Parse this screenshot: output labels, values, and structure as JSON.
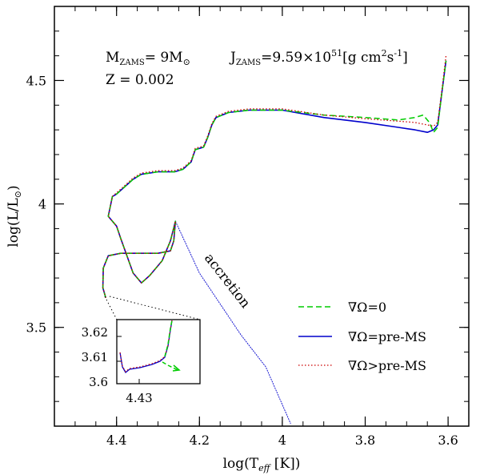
{
  "chart_data": {
    "type": "line",
    "xlabel": "log(T",
    "xlabel_sub": "eff",
    "xlabel_tail": " [K])",
    "ylabel": "log(L/L",
    "ylabel_sub": "⊙",
    "ylabel_tail": ")",
    "xlim": [
      4.55,
      3.55
    ],
    "ylim": [
      3.1,
      4.8
    ],
    "x_reversed": true,
    "xticks": [
      4.4,
      4.2,
      4.0,
      3.8,
      3.6
    ],
    "xtick_labels": [
      "4.4",
      "4.2",
      "4",
      "3.8",
      "3.6"
    ],
    "yticks": [
      3.5,
      4.0,
      4.5
    ],
    "ytick_labels": [
      "3.5",
      "4",
      "4.5"
    ],
    "grid": false,
    "legend_position": "bottom-right",
    "annotations": {
      "mass_line_main": "M",
      "mass_line_sub": "ZAMS",
      "mass_line_tail": "=  9M",
      "mass_line_sun": "⊙",
      "j_line_main": "J",
      "j_line_sub": "ZAMS",
      "j_line_tail": "=9.59×10",
      "j_line_exp": "51",
      "j_line_unit": "[g cm",
      "j_line_unit_exp1": "2",
      "j_line_unit_mid": "s",
      "j_line_unit_exp2": "-1",
      "j_line_unit_end": "]",
      "z_line": "Z  =  0.002",
      "accretion": "accretion"
    },
    "series": [
      {
        "name": "∇Ω=0",
        "color": "#00cc00",
        "style": "dashed",
        "points": [
          [
            4.42,
            3.95
          ],
          [
            4.41,
            4.03
          ],
          [
            4.4,
            4.04
          ],
          [
            4.38,
            4.07
          ],
          [
            4.36,
            4.1
          ],
          [
            4.34,
            4.12
          ],
          [
            4.3,
            4.13
          ],
          [
            4.26,
            4.13
          ],
          [
            4.24,
            4.14
          ],
          [
            4.22,
            4.17
          ],
          [
            4.21,
            4.22
          ],
          [
            4.19,
            4.23
          ],
          [
            4.18,
            4.27
          ],
          [
            4.17,
            4.32
          ],
          [
            4.16,
            4.35
          ],
          [
            4.13,
            4.37
          ],
          [
            4.08,
            4.38
          ],
          [
            4.0,
            4.38
          ],
          [
            3.9,
            4.36
          ],
          [
            3.8,
            4.35
          ],
          [
            3.72,
            4.34
          ],
          [
            3.68,
            4.35
          ],
          [
            3.66,
            4.36
          ],
          [
            3.645,
            4.33
          ],
          [
            3.635,
            4.29
          ],
          [
            3.625,
            4.31
          ],
          [
            3.615,
            4.45
          ],
          [
            3.605,
            4.58
          ]
        ]
      },
      {
        "name": "∇Ω=pre-MS",
        "color": "#0000cc",
        "style": "solid",
        "points": [
          [
            4.42,
            3.95
          ],
          [
            4.41,
            4.03
          ],
          [
            4.4,
            4.04
          ],
          [
            4.38,
            4.07
          ],
          [
            4.36,
            4.1
          ],
          [
            4.34,
            4.12
          ],
          [
            4.3,
            4.13
          ],
          [
            4.26,
            4.13
          ],
          [
            4.24,
            4.14
          ],
          [
            4.22,
            4.17
          ],
          [
            4.21,
            4.22
          ],
          [
            4.19,
            4.23
          ],
          [
            4.18,
            4.27
          ],
          [
            4.17,
            4.32
          ],
          [
            4.16,
            4.35
          ],
          [
            4.13,
            4.37
          ],
          [
            4.08,
            4.38
          ],
          [
            4.0,
            4.38
          ],
          [
            3.9,
            4.35
          ],
          [
            3.8,
            4.33
          ],
          [
            3.72,
            4.31
          ],
          [
            3.68,
            4.3
          ],
          [
            3.65,
            4.29
          ],
          [
            3.635,
            4.3
          ],
          [
            3.625,
            4.32
          ],
          [
            3.615,
            4.45
          ],
          [
            3.605,
            4.58
          ]
        ]
      },
      {
        "name": "∇Ω>pre-MS",
        "color": "#cc0000",
        "style": "dotted",
        "points": [
          [
            4.42,
            3.95
          ],
          [
            4.41,
            4.03
          ],
          [
            4.4,
            4.045
          ],
          [
            4.38,
            4.075
          ],
          [
            4.36,
            4.105
          ],
          [
            4.34,
            4.125
          ],
          [
            4.3,
            4.135
          ],
          [
            4.26,
            4.135
          ],
          [
            4.24,
            4.145
          ],
          [
            4.22,
            4.175
          ],
          [
            4.21,
            4.225
          ],
          [
            4.19,
            4.235
          ],
          [
            4.18,
            4.275
          ],
          [
            4.17,
            4.325
          ],
          [
            4.16,
            4.355
          ],
          [
            4.13,
            4.375
          ],
          [
            4.08,
            4.385
          ],
          [
            4.0,
            4.385
          ],
          [
            3.9,
            4.36
          ],
          [
            3.8,
            4.345
          ],
          [
            3.72,
            4.335
          ],
          [
            3.68,
            4.33
          ],
          [
            3.65,
            4.32
          ],
          [
            3.635,
            4.315
          ],
          [
            3.625,
            4.33
          ],
          [
            3.615,
            4.46
          ],
          [
            3.605,
            4.6
          ]
        ]
      }
    ],
    "shared_prems": [
      [
        4.426,
        3.62
      ],
      [
        4.433,
        3.66
      ],
      [
        4.432,
        3.74
      ],
      [
        4.42,
        3.79
      ],
      [
        4.39,
        3.8
      ],
      [
        4.3,
        3.8
      ],
      [
        4.27,
        3.81
      ],
      [
        4.262,
        3.85
      ],
      [
        4.258,
        3.93
      ],
      [
        4.27,
        3.85
      ],
      [
        4.29,
        3.77
      ],
      [
        4.32,
        3.71
      ],
      [
        4.34,
        3.68
      ],
      [
        4.36,
        3.72
      ],
      [
        4.39,
        3.86
      ],
      [
        4.4,
        3.91
      ],
      [
        4.42,
        3.95
      ]
    ],
    "accretion_line": [
      [
        4.258,
        3.93
      ],
      [
        4.2,
        3.72
      ],
      [
        4.1,
        3.47
      ],
      [
        4.04,
        3.34
      ],
      [
        3.98,
        3.11
      ]
    ],
    "inset": {
      "xtick_labels": [
        "4.43"
      ],
      "ytick_labels": [
        "3.62",
        "3.61",
        "3.6"
      ]
    }
  }
}
